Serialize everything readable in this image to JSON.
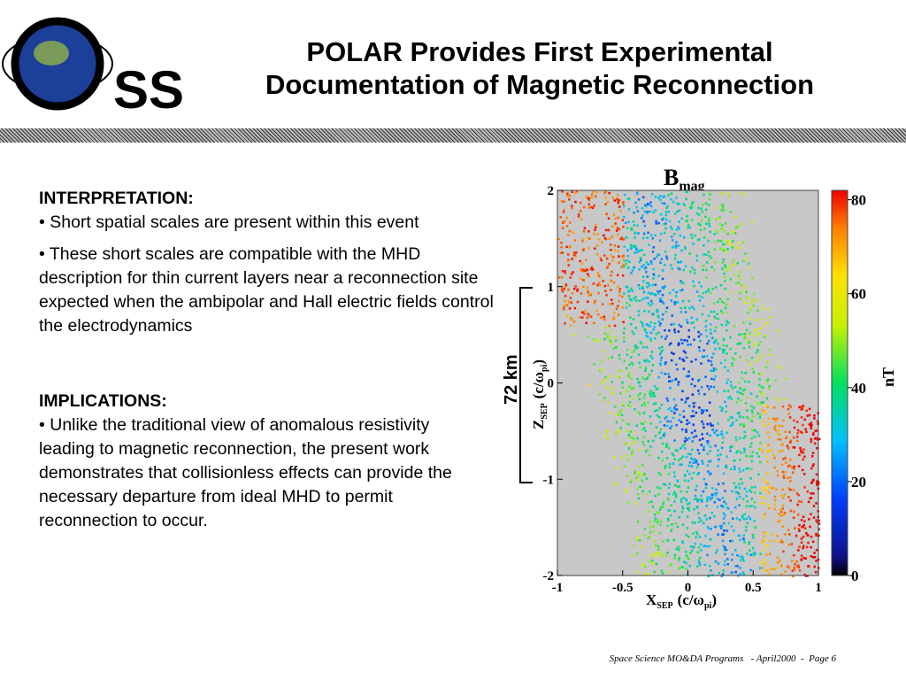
{
  "header": {
    "logo": "SS",
    "title": [
      "POLAR Provides First Experimental",
      "Documentation of Magnetic Reconnection"
    ]
  },
  "interpretation": {
    "heading": "INTERPRETATION:",
    "bullets": [
      "• Short spatial scales are present within this event",
      "• These short scales are compatible with the MHD description for thin current layers near a reconnection site expected when the ambipolar and Hall electric fields control the electrodynamics"
    ]
  },
  "implications": {
    "heading": "IMPLICATIONS:",
    "bullets": [
      "• Unlike the traditional view of anomalous resistivity leading to magnetic reconnection, the present work demonstrates that collisionless effects can provide the necessary departure from ideal MHD to permit reconnection to occur."
    ]
  },
  "figure": {
    "title": {
      "main": "B",
      "sub": "mag"
    },
    "xlabel": {
      "main": "X",
      "sub": "SEP",
      "rest": "(c/ω",
      "sub2": "pi",
      "end": ")"
    },
    "ylabel": {
      "main": "Z",
      "sub": "SEP",
      "rest": "(c/ω",
      "sub2": "pi",
      "end": ")"
    },
    "scale_label": "72 km",
    "xlim": [
      -1,
      1
    ],
    "xticks": [
      -1,
      -0.5,
      0,
      0.5,
      1
    ],
    "ylim": [
      -2,
      2
    ],
    "yticks": [
      -2,
      -1,
      0,
      1,
      2
    ],
    "colorbar": {
      "lim": [
        0,
        82
      ],
      "ticks": [
        0,
        20,
        40,
        60,
        80
      ],
      "unit": "nT"
    }
  },
  "footer": "Space Science MO&DA Programs   - April2000  -  Page 6"
}
